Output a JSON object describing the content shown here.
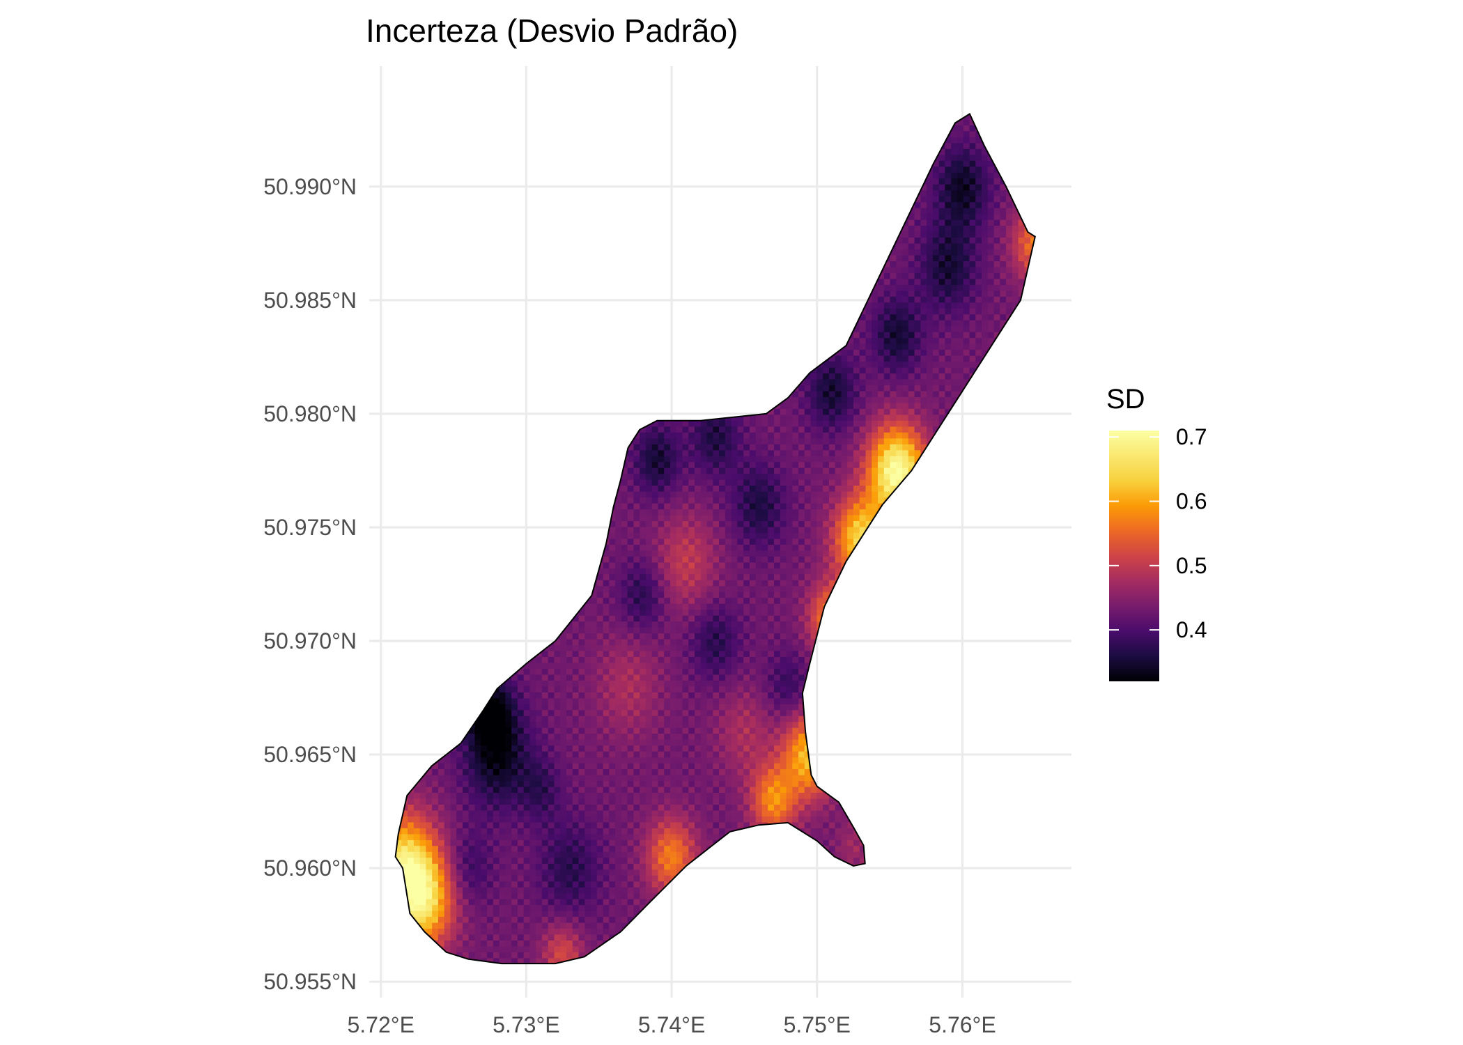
{
  "title": "Incerteza (Desvio Padrão)",
  "chart_data": {
    "type": "heatmap",
    "title": "Incerteza (Desvio Padrão)",
    "xlabel": "",
    "ylabel": "",
    "xlim": [
      5.7192,
      5.7675
    ],
    "ylim": [
      50.9543,
      50.9953
    ],
    "x_ticks": [
      {
        "value": 5.72,
        "label": "5.72°E"
      },
      {
        "value": 5.73,
        "label": "5.73°E"
      },
      {
        "value": 5.74,
        "label": "5.74°E"
      },
      {
        "value": 5.75,
        "label": "5.75°E"
      },
      {
        "value": 5.76,
        "label": "5.76°E"
      }
    ],
    "y_ticks": [
      {
        "value": 50.955,
        "label": "50.955°N"
      },
      {
        "value": 50.96,
        "label": "50.960°N"
      },
      {
        "value": 50.965,
        "label": "50.965°N"
      },
      {
        "value": 50.97,
        "label": "50.970°N"
      },
      {
        "value": 50.975,
        "label": "50.975°N"
      },
      {
        "value": 50.98,
        "label": "50.980°N"
      },
      {
        "value": 50.985,
        "label": "50.985°N"
      },
      {
        "value": 50.99,
        "label": "50.990°N"
      }
    ],
    "grid": true,
    "colorscale": "inferno",
    "color_range": [
      0.32,
      0.71
    ],
    "boundary": [
      [
        5.7605,
        50.9932
      ],
      [
        5.7615,
        50.9918
      ],
      [
        5.763,
        50.99
      ],
      [
        5.7645,
        50.988
      ],
      [
        5.765,
        50.9878
      ],
      [
        5.764,
        50.985
      ],
      [
        5.762,
        50.983
      ],
      [
        5.76,
        50.981
      ],
      [
        5.758,
        50.979
      ],
      [
        5.7565,
        50.9775
      ],
      [
        5.7545,
        50.976
      ],
      [
        5.752,
        50.9735
      ],
      [
        5.7505,
        50.9715
      ],
      [
        5.7495,
        50.969
      ],
      [
        5.749,
        50.9677
      ],
      [
        5.7492,
        50.966
      ],
      [
        5.7496,
        50.9641
      ],
      [
        5.75,
        50.9636
      ],
      [
        5.7515,
        50.9629
      ],
      [
        5.7525,
        50.9618
      ],
      [
        5.7532,
        50.961
      ],
      [
        5.7533,
        50.9602
      ],
      [
        5.7525,
        50.9601
      ],
      [
        5.7512,
        50.9605
      ],
      [
        5.75,
        50.9612
      ],
      [
        5.748,
        50.962
      ],
      [
        5.746,
        50.9619
      ],
      [
        5.744,
        50.9616
      ],
      [
        5.741,
        50.9601
      ],
      [
        5.7385,
        50.9585
      ],
      [
        5.7365,
        50.9572
      ],
      [
        5.734,
        50.9561
      ],
      [
        5.732,
        50.9558
      ],
      [
        5.73,
        50.9558
      ],
      [
        5.7283,
        50.9558
      ],
      [
        5.726,
        50.956
      ],
      [
        5.7245,
        50.9563
      ],
      [
        5.723,
        50.9572
      ],
      [
        5.722,
        50.958
      ],
      [
        5.7215,
        50.96
      ],
      [
        5.721,
        50.9605
      ],
      [
        5.7212,
        50.9615
      ],
      [
        5.7218,
        50.9632
      ],
      [
        5.7235,
        50.9645
      ],
      [
        5.7255,
        50.9655
      ],
      [
        5.727,
        50.9669
      ],
      [
        5.728,
        50.9679
      ],
      [
        5.73,
        50.969
      ],
      [
        5.732,
        50.97
      ],
      [
        5.7345,
        50.972
      ],
      [
        5.7355,
        50.9743
      ],
      [
        5.736,
        50.9759
      ],
      [
        5.7365,
        50.9771
      ],
      [
        5.737,
        50.9785
      ],
      [
        5.7378,
        50.9793
      ],
      [
        5.739,
        50.9797
      ],
      [
        5.742,
        50.9797
      ],
      [
        5.7465,
        50.98
      ],
      [
        5.748,
        50.9807
      ],
      [
        5.7495,
        50.9818
      ],
      [
        5.752,
        50.983
      ],
      [
        5.7535,
        50.985
      ],
      [
        5.755,
        50.987
      ],
      [
        5.7565,
        50.989
      ],
      [
        5.758,
        50.991
      ],
      [
        5.7595,
        50.9928
      ]
    ],
    "hotspots": [
      {
        "x": 5.7555,
        "y": 50.9775,
        "sd": 0.71,
        "spread": 0.0014
      },
      {
        "x": 5.753,
        "y": 50.9745,
        "sd": 0.64,
        "spread": 0.0013
      },
      {
        "x": 5.751,
        "y": 50.971,
        "sd": 0.58,
        "spread": 0.0011
      },
      {
        "x": 5.7215,
        "y": 50.96,
        "sd": 0.66,
        "spread": 0.0017
      },
      {
        "x": 5.723,
        "y": 50.9585,
        "sd": 0.6,
        "spread": 0.0015
      },
      {
        "x": 5.7495,
        "y": 50.965,
        "sd": 0.62,
        "spread": 0.0013
      },
      {
        "x": 5.747,
        "y": 50.963,
        "sd": 0.58,
        "spread": 0.0011
      },
      {
        "x": 5.74,
        "y": 50.9605,
        "sd": 0.57,
        "spread": 0.0012
      },
      {
        "x": 5.765,
        "y": 50.9875,
        "sd": 0.56,
        "spread": 0.0011
      },
      {
        "x": 5.7325,
        "y": 50.9562,
        "sd": 0.52,
        "spread": 0.001
      },
      {
        "x": 5.741,
        "y": 50.9735,
        "sd": 0.5,
        "spread": 0.0015
      },
      {
        "x": 5.737,
        "y": 50.968,
        "sd": 0.48,
        "spread": 0.0016
      },
      {
        "x": 5.745,
        "y": 50.966,
        "sd": 0.48,
        "spread": 0.0014
      },
      {
        "x": 5.7525,
        "y": 50.961,
        "sd": 0.47,
        "spread": 0.0008
      }
    ],
    "coldspots": [
      {
        "x": 5.728,
        "y": 50.965,
        "sd": 0.33,
        "spread": 0.0016
      },
      {
        "x": 5.7275,
        "y": 50.967,
        "sd": 0.33,
        "spread": 0.0011
      },
      {
        "x": 5.76,
        "y": 50.99,
        "sd": 0.34,
        "spread": 0.0013
      },
      {
        "x": 5.759,
        "y": 50.9865,
        "sd": 0.35,
        "spread": 0.0014
      },
      {
        "x": 5.7555,
        "y": 50.9835,
        "sd": 0.35,
        "spread": 0.0012
      },
      {
        "x": 5.751,
        "y": 50.981,
        "sd": 0.35,
        "spread": 0.0012
      },
      {
        "x": 5.743,
        "y": 50.979,
        "sd": 0.36,
        "spread": 0.0012
      },
      {
        "x": 5.739,
        "y": 50.978,
        "sd": 0.35,
        "spread": 0.0011
      },
      {
        "x": 5.746,
        "y": 50.976,
        "sd": 0.36,
        "spread": 0.0013
      },
      {
        "x": 5.738,
        "y": 50.972,
        "sd": 0.37,
        "spread": 0.0011
      },
      {
        "x": 5.743,
        "y": 50.97,
        "sd": 0.37,
        "spread": 0.0012
      },
      {
        "x": 5.733,
        "y": 50.96,
        "sd": 0.37,
        "spread": 0.0015
      },
      {
        "x": 5.726,
        "y": 50.96,
        "sd": 0.38,
        "spread": 0.0012
      },
      {
        "x": 5.748,
        "y": 50.968,
        "sd": 0.38,
        "spread": 0.0011
      },
      {
        "x": 5.731,
        "y": 50.9635,
        "sd": 0.38,
        "spread": 0.001
      }
    ]
  },
  "legend": {
    "title": "SD",
    "min": 0.32,
    "max": 0.71,
    "ticks": [
      {
        "value": 0.4,
        "label": "0.4"
      },
      {
        "value": 0.5,
        "label": "0.5"
      },
      {
        "value": 0.6,
        "label": "0.6"
      },
      {
        "value": 0.7,
        "label": "0.7"
      }
    ]
  }
}
